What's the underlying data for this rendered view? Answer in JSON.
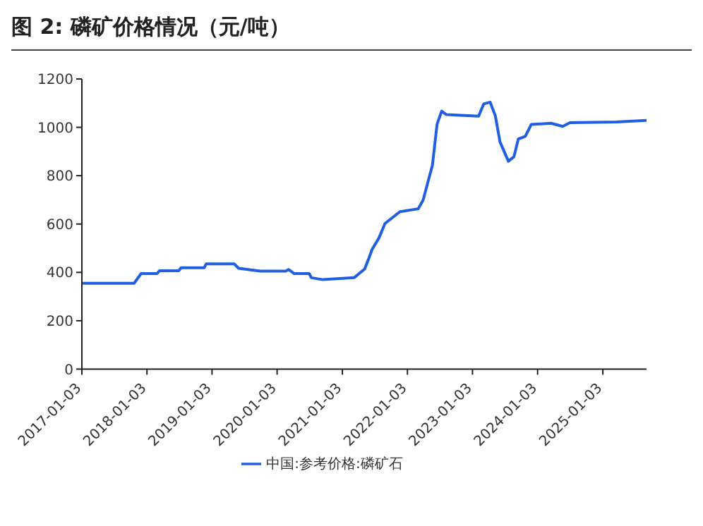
{
  "chart_data": {
    "type": "line",
    "title": "图 2:  磷矿价格情况（元/吨）",
    "x": [
      "2017-01-03",
      "2017-10-23",
      "2017-12-01",
      "2018-03-01",
      "2018-03-14",
      "2018-07-01",
      "2018-07-13",
      "2018-11-20",
      "2018-12-01",
      "2019-05-08",
      "2019-06-01",
      "2019-10-01",
      "2020-02-20",
      "2020-03-07",
      "2020-04-08",
      "2020-07-01",
      "2020-07-13",
      "2020-09-16",
      "2021-03-10",
      "2021-05-08",
      "2021-06-03",
      "2021-06-18",
      "2021-07-27",
      "2021-08-30",
      "2021-11-22",
      "2022-03-04",
      "2022-04-01",
      "2022-04-27",
      "2022-05-23",
      "2022-06-18",
      "2022-07-14",
      "2022-08-08",
      "2023-02-06",
      "2023-03-07",
      "2023-04-12",
      "2023-05-11",
      "2023-06-06",
      "2023-07-23",
      "2023-08-23",
      "2023-09-17",
      "2023-10-26",
      "2023-11-29",
      "2024-03-18",
      "2024-05-23",
      "2024-07-02",
      "2025-03-20",
      "2025-09-05"
    ],
    "series": [
      {
        "name": "中国:参考价格:磷矿石",
        "color": "#1f5fe0",
        "values": [
          355,
          355,
          395,
          395,
          407,
          407,
          419,
          419,
          435,
          435,
          417,
          405,
          405,
          412,
          395,
          395,
          378,
          370,
          378,
          414,
          463,
          494,
          542,
          602,
          651,
          663,
          699,
          771,
          843,
          1012,
          1067,
          1053,
          1046,
          1097,
          1104,
          1048,
          940,
          860,
          878,
          952,
          963,
          1012,
          1017,
          1004,
          1019,
          1022,
          1029
        ]
      }
    ],
    "xlim": [
      "2017-01-03",
      "2025-09-05"
    ],
    "xticks": [
      "2017-01-03",
      "2018-01-03",
      "2019-01-03",
      "2020-01-03",
      "2021-01-03",
      "2022-01-03",
      "2023-01-03",
      "2024-01-03",
      "2025-01-03"
    ],
    "ylim": [
      0,
      1200
    ],
    "yticks": [
      0,
      200,
      400,
      600,
      800,
      1000,
      1200
    ],
    "grid": false,
    "legend": "bottom",
    "marker": "none",
    "line_style": "solid"
  }
}
